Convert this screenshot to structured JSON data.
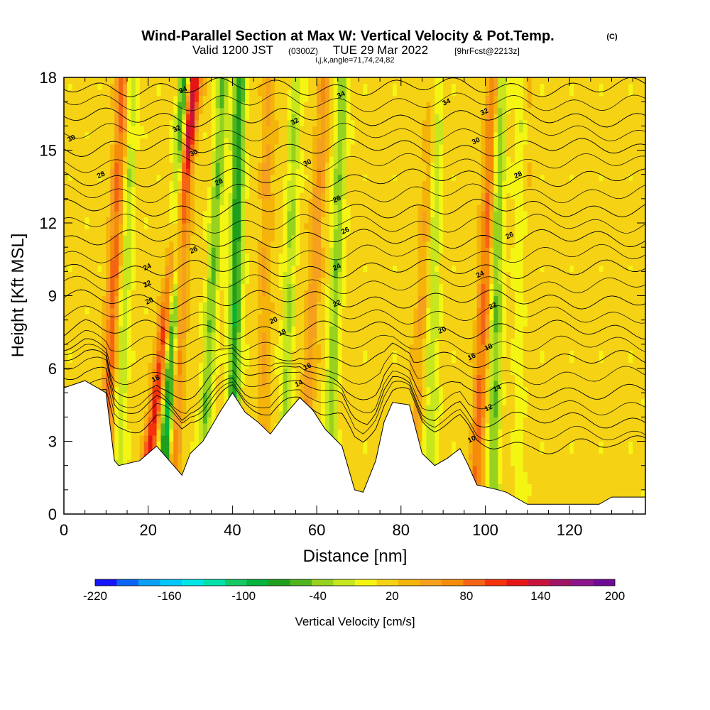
{
  "header": {
    "title": "Wind-Parallel Section at Max W: Vertical Velocity & Pot.Temp.",
    "title_mark": "(C)",
    "valid_prefix": "Valid 1200 JST",
    "valid_zulu": "(0300Z)",
    "valid_date": "TUE 29 Mar 2022",
    "forecast_note": "[9hrFcst@2213z]",
    "indices": "i,j,k,angle=71,74,24,82"
  },
  "chart_data": {
    "type": "heatmap",
    "xlabel": "Distance [nm]",
    "ylabel": "Height [Kft MSL]",
    "xlim": [
      0,
      138
    ],
    "ylim": [
      0,
      18
    ],
    "x_ticks": [
      "0",
      "20",
      "40",
      "60",
      "80",
      "100",
      "120"
    ],
    "x_tick_values": [
      0,
      20,
      40,
      60,
      80,
      100,
      120
    ],
    "y_ticks": [
      "0",
      "3",
      "6",
      "9",
      "12",
      "15",
      "18"
    ],
    "y_tick_values": [
      0,
      3,
      6,
      9,
      12,
      15,
      18
    ],
    "colorbar": {
      "label": "Vertical Velocity [cm/s]",
      "tick_labels": [
        "-220",
        "-160",
        "-100",
        "-40",
        "20",
        "80",
        "140",
        "200"
      ],
      "tick_values": [
        -220,
        -160,
        -100,
        -40,
        20,
        80,
        140,
        200
      ],
      "colors": [
        "#1414ff",
        "#0a64f5",
        "#0aa0f5",
        "#00c8ff",
        "#00e6e6",
        "#00e1aa",
        "#14c864",
        "#00b43c",
        "#1ea01e",
        "#50b41e",
        "#96d21e",
        "#c8e61e",
        "#f5f514",
        "#f5d214",
        "#f5b40a",
        "#f5a01e",
        "#f58c0a",
        "#f56414",
        "#f5320a",
        "#e61414",
        "#c8143c",
        "#a01464",
        "#8c148c",
        "#6e0a96"
      ]
    },
    "updraft_bands": [
      {
        "x_base": 10,
        "slope": 0.25,
        "w": 70
      },
      {
        "x_base": 20,
        "slope": 0.7,
        "w": 100
      },
      {
        "x_base": 26,
        "slope": 0.25,
        "w": 60
      },
      {
        "x_base": 47,
        "slope": 0.1,
        "w": 30
      },
      {
        "x_base": 57,
        "slope": 0.3,
        "w": 40
      },
      {
        "x_base": 83,
        "slope": 0.3,
        "w": 30
      },
      {
        "x_base": 98,
        "slope": 0.25,
        "w": 70
      },
      {
        "x_base": 108,
        "slope": 0.1,
        "w": 30
      }
    ],
    "downdraft_bands": [
      {
        "x_base": 13,
        "slope": 0.2,
        "w": -40
      },
      {
        "x_base": 24,
        "slope": 0.3,
        "w": -110
      },
      {
        "x_base": 33,
        "slope": 0.3,
        "w": -60
      },
      {
        "x_base": 40,
        "slope": 0.1,
        "w": -90
      },
      {
        "x_base": 52,
        "slope": 0.2,
        "w": -45
      },
      {
        "x_base": 63,
        "slope": 0.2,
        "w": -55
      },
      {
        "x_base": 87,
        "slope": 0.1,
        "w": -40
      },
      {
        "x_base": 102,
        "slope": 0.1,
        "w": -60
      },
      {
        "x_base": 108,
        "slope": 0.05,
        "w": -45
      }
    ],
    "terrain_kft": [
      [
        0,
        5.2
      ],
      [
        5,
        5.5
      ],
      [
        10,
        5.0
      ],
      [
        12,
        2.2
      ],
      [
        13,
        2.0
      ],
      [
        18,
        2.2
      ],
      [
        20,
        2.5
      ],
      [
        22,
        2.8
      ],
      [
        28,
        1.6
      ],
      [
        30,
        2.5
      ],
      [
        33,
        3.0
      ],
      [
        37,
        4.2
      ],
      [
        40,
        5.0
      ],
      [
        43,
        4.2
      ],
      [
        46,
        3.8
      ],
      [
        49,
        3.3
      ],
      [
        52,
        4.0
      ],
      [
        56,
        4.8
      ],
      [
        59,
        4.3
      ],
      [
        62,
        3.5
      ],
      [
        66,
        2.8
      ],
      [
        69,
        1.0
      ],
      [
        71,
        0.9
      ],
      [
        74,
        2.2
      ],
      [
        76,
        3.8
      ],
      [
        78,
        4.6
      ],
      [
        82,
        4.5
      ],
      [
        85,
        2.5
      ],
      [
        88,
        2.0
      ],
      [
        91,
        2.3
      ],
      [
        94,
        2.7
      ],
      [
        96,
        2.0
      ],
      [
        98,
        1.2
      ],
      [
        103,
        1.0
      ],
      [
        105,
        0.9
      ],
      [
        110,
        0.4
      ],
      [
        118,
        0.4
      ],
      [
        127,
        0.4
      ],
      [
        130,
        0.7
      ],
      [
        138,
        0.7
      ]
    ],
    "theta_contours": [
      10,
      12,
      14,
      16,
      18,
      20,
      22,
      24,
      26,
      28,
      30,
      32,
      34
    ],
    "contour_labels": [
      {
        "text": "34",
        "x": 28.5,
        "y": 17.4
      },
      {
        "text": "34",
        "x": 66,
        "y": 17.2
      },
      {
        "text": "34",
        "x": 91,
        "y": 16.9
      },
      {
        "text": "32",
        "x": 100,
        "y": 16.5
      },
      {
        "text": "30",
        "x": 2,
        "y": 15.4
      },
      {
        "text": "32",
        "x": 27,
        "y": 15.8
      },
      {
        "text": "32",
        "x": 55,
        "y": 16.1
      },
      {
        "text": "30",
        "x": 31,
        "y": 14.8
      },
      {
        "text": "30",
        "x": 58,
        "y": 14.4
      },
      {
        "text": "30",
        "x": 98,
        "y": 15.3
      },
      {
        "text": "28",
        "x": 9,
        "y": 13.9
      },
      {
        "text": "28",
        "x": 37,
        "y": 13.6
      },
      {
        "text": "28",
        "x": 65,
        "y": 12.9
      },
      {
        "text": "28",
        "x": 108,
        "y": 13.9
      },
      {
        "text": "26",
        "x": 67,
        "y": 11.6
      },
      {
        "text": "26",
        "x": 106,
        "y": 11.4
      },
      {
        "text": "26",
        "x": 31,
        "y": 10.8
      },
      {
        "text": "24",
        "x": 20,
        "y": 10.1
      },
      {
        "text": "24",
        "x": 65,
        "y": 10.1
      },
      {
        "text": "24",
        "x": 99,
        "y": 9.8
      },
      {
        "text": "22",
        "x": 20,
        "y": 9.4
      },
      {
        "text": "22",
        "x": 65,
        "y": 8.6
      },
      {
        "text": "22",
        "x": 102,
        "y": 8.5
      },
      {
        "text": "20",
        "x": 20.5,
        "y": 8.7
      },
      {
        "text": "20",
        "x": 50,
        "y": 7.9
      },
      {
        "text": "20",
        "x": 90,
        "y": 7.5
      },
      {
        "text": "18",
        "x": 52,
        "y": 7.4
      },
      {
        "text": "18",
        "x": 101,
        "y": 6.8
      },
      {
        "text": "18",
        "x": 22,
        "y": 5.5
      },
      {
        "text": "16",
        "x": 58,
        "y": 6.0
      },
      {
        "text": "16",
        "x": 97,
        "y": 6.4
      },
      {
        "text": "14",
        "x": 56,
        "y": 5.3
      },
      {
        "text": "14",
        "x": 103,
        "y": 5.1
      },
      {
        "text": "12",
        "x": 101,
        "y": 4.3
      },
      {
        "text": "10",
        "x": 97,
        "y": 3.0
      }
    ]
  }
}
